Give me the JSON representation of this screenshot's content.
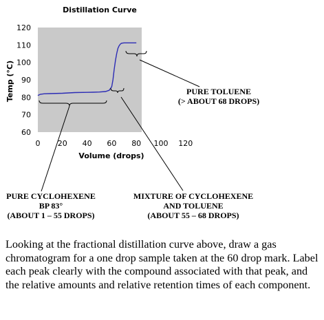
{
  "chart_data": {
    "type": "line",
    "title": "Distillation Curve",
    "xlabel": "Volume (drops)",
    "ylabel": "Temp (°C)",
    "xlim": [
      0,
      120
    ],
    "ylim": [
      60,
      120
    ],
    "xticks": [
      "0",
      "20",
      "40",
      "60",
      "80",
      "100",
      "120"
    ],
    "yticks": [
      "60",
      "70",
      "80",
      "90",
      "100",
      "110",
      "120"
    ],
    "grid": false,
    "series": [
      {
        "color": "#2b2bb5",
        "x": [
          0,
          2,
          5,
          10,
          20,
          30,
          40,
          45,
          50,
          55,
          58,
          60,
          61,
          62,
          63,
          64,
          65,
          66,
          67,
          68,
          70,
          72,
          80
        ],
        "y": [
          81,
          81.7,
          82,
          82.1,
          82.3,
          82.7,
          82.8,
          82.9,
          83.0,
          83.3,
          84.0,
          86.0,
          90,
          96,
          101,
          105,
          108,
          109.5,
          110.5,
          111,
          111.2,
          111.2,
          111.2
        ]
      }
    ]
  },
  "annotations": {
    "cyclohexene": [
      "PURE CYCLOHEXENE",
      "BP 83°",
      "(ABOUT 1 – 55 DROPS)"
    ],
    "mixture": [
      "MIXTURE OF CYCLOHEXENE",
      "AND TOLUENE",
      "(ABOUT 55 – 68 DROPS)"
    ],
    "toluene": [
      "PURE TOLUENE",
      "(> ABOUT 68 DROPS)"
    ]
  },
  "question": "Looking at the fractional distillation curve above, draw a gas chromatogram for a one drop sample taken at the 60 drop mark. Label each peak clearly with the compound associated with that peak, and the relative amounts and relative retention times of each component."
}
